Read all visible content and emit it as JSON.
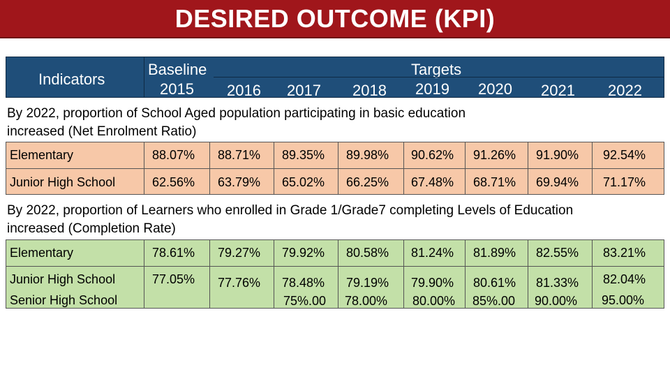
{
  "title": "DESIRED OUTCOME (KPI)",
  "header": {
    "indicators": "Indicators",
    "baseline_label": "Baseline",
    "targets_label": "Targets",
    "years": [
      "2015",
      "2016",
      "2017",
      "2018",
      "2019",
      "2020",
      "2021",
      "2022"
    ]
  },
  "section1": {
    "line1": "By 2022, proportion of School Aged population participating in basic education",
    "line2": "increased  (Net Enrolment Ratio)",
    "rows": [
      {
        "label": "Elementary",
        "values": [
          "88.07%",
          "88.71%",
          "89.35%",
          "89.98%",
          "90.62%",
          "91.26%",
          "91.90%",
          "92.54%"
        ]
      },
      {
        "label": "Junior High School",
        "values": [
          "62.56%",
          "63.79%",
          "65.02%",
          "66.25%",
          "67.48%",
          "68.71%",
          "69.94%",
          "71.17%"
        ]
      }
    ]
  },
  "section2": {
    "line1": "By 2022, proportion of Learners who enrolled in Grade 1/Grade7 completing Levels of Education",
    "line2": "increased (Completion Rate)",
    "rows": [
      {
        "label": "Elementary",
        "values": [
          "78.61%",
          "79.27%",
          "79.92%",
          "80.58%",
          "81.24%",
          "81.89%",
          "82.55%",
          "83.21%"
        ]
      },
      {
        "label": "Junior High School",
        "values": [
          "77.05%",
          "77.76%",
          "78.48%",
          "79.19%",
          "79.90%",
          "80.61%",
          "81.33%",
          "82.04%"
        ]
      },
      {
        "label": "Senior High School",
        "values": [
          "",
          "",
          "75%.00",
          "78.00%",
          "80.00%",
          "85%.00",
          "90.00%",
          "95.00%"
        ]
      }
    ]
  }
}
